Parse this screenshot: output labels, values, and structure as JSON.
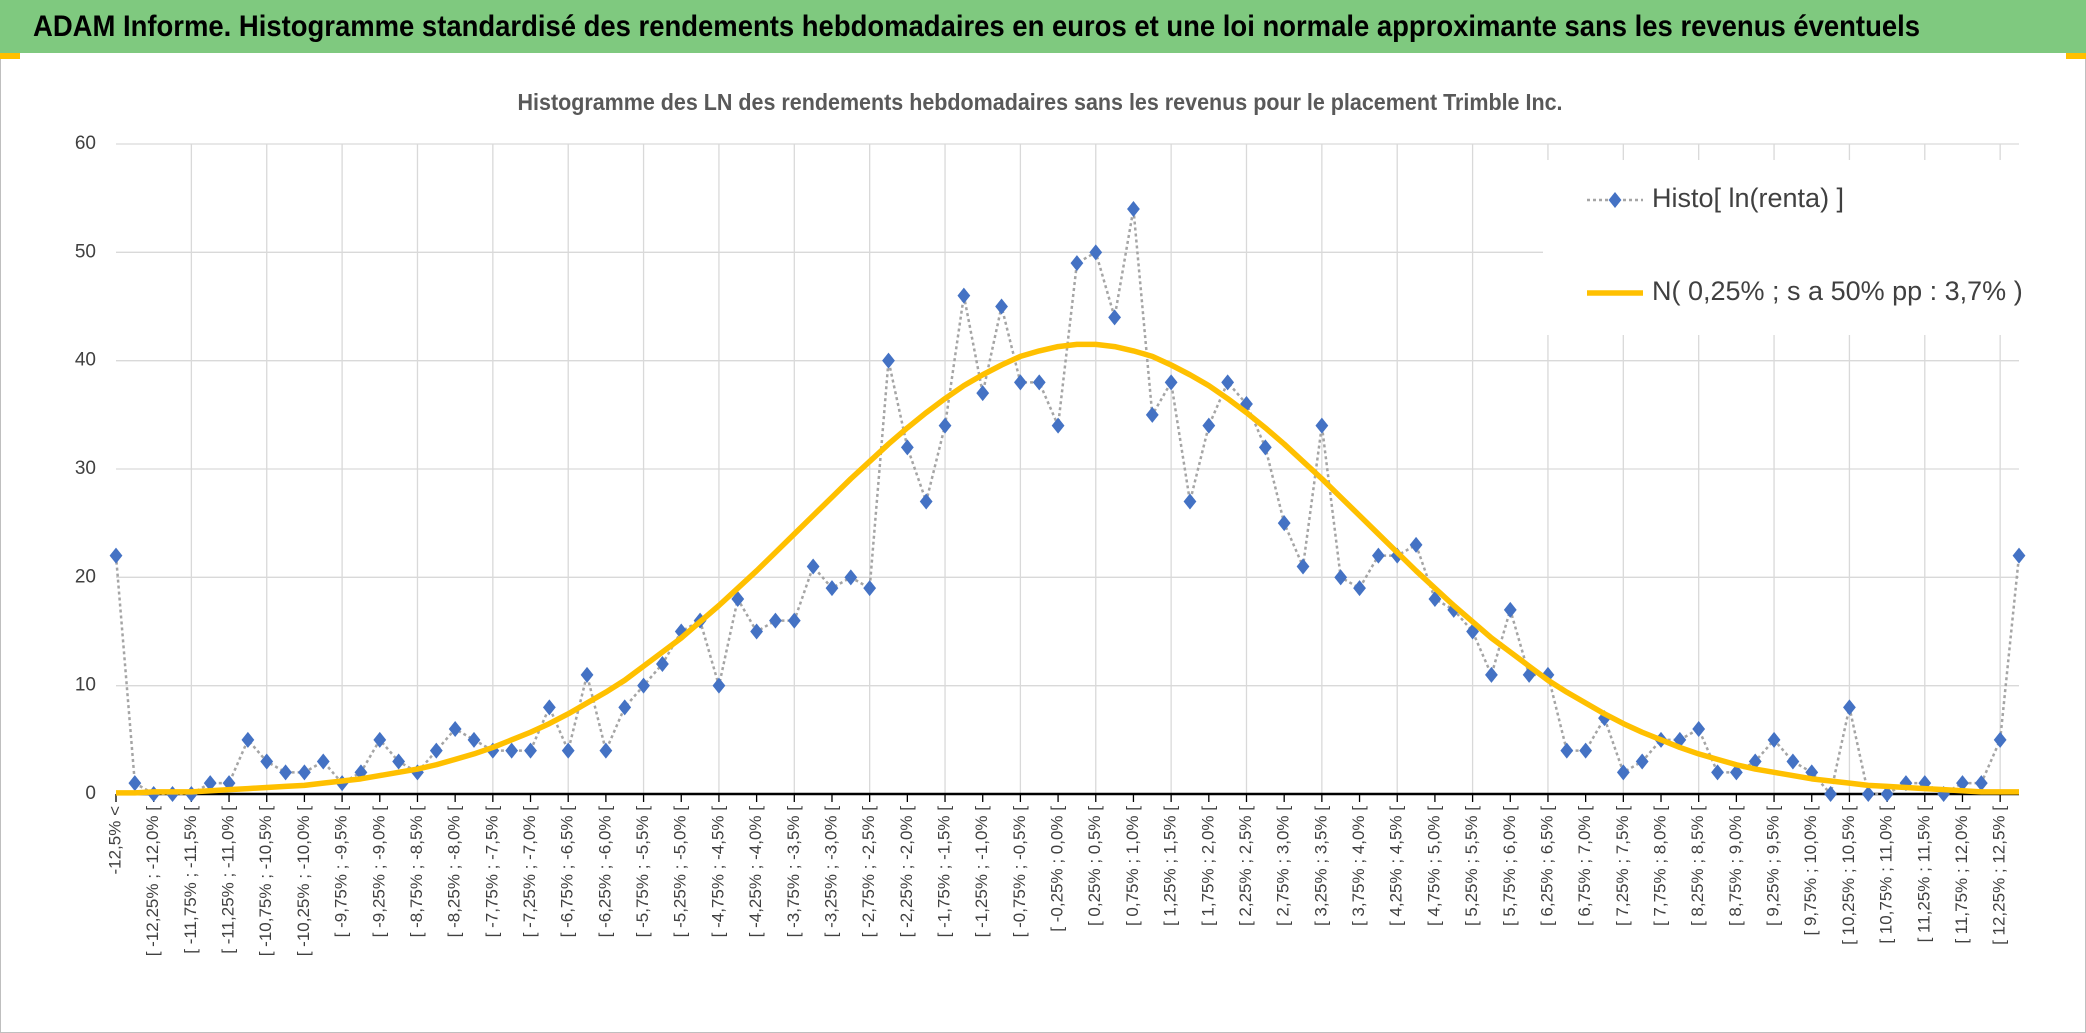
{
  "header": {
    "title": "ADAM Informe. Histogramme standardisé des rendements hebdomadaires en euros et une loi normale approximante sans les revenus éventuels"
  },
  "chart_data": {
    "type": "line",
    "title": "Histogramme des LN des rendements hebdomadaires sans les revenus pour le placement Trimble Inc.",
    "categories": [
      "-12,5% <",
      null,
      "[ -12,25% ; -12,0% [",
      null,
      "[ -11,75% ; -11,5% [",
      null,
      "[ -11,25% ; -11,0% [",
      null,
      "[ -10,75% ; -10,5% [",
      null,
      "[ -10,25% ; -10,0% [",
      null,
      "[ -9,75% ; -9,5% [",
      null,
      "[ -9,25% ; -9,0% [",
      null,
      "[ -8,75% ; -8,5% [",
      null,
      "[ -8,25% ; -8,0% [",
      null,
      "[ -7,75% ; -7,5% [",
      null,
      "[ -7,25% ; -7,0% [",
      null,
      "[ -6,75% ; -6,5% [",
      null,
      "[ -6,25% ; -6,0% [",
      null,
      "[ -5,75% ; -5,5% [",
      null,
      "[ -5,25% ; -5,0% [",
      null,
      "[ -4,75% ; -4,5% [",
      null,
      "[ -4,25% ; -4,0% [",
      null,
      "[ -3,75% ; -3,5% [",
      null,
      "[ -3,25% ; -3,0% [",
      null,
      "[ -2,75% ; -2,5% [",
      null,
      "[ -2,25% ; -2,0% [",
      null,
      "[ -1,75% ; -1,5% [",
      null,
      "[ -1,25% ; -1,0% [",
      null,
      "[ -0,75% ; -0,5% [",
      null,
      "[ -0,25% ; 0,0% [",
      null,
      "[ 0,25% ; 0,5% [",
      null,
      "[ 0,75% ; 1,0% [",
      null,
      "[ 1,25% ; 1,5% [",
      null,
      "[ 1,75% ; 2,0% [",
      null,
      "[ 2,25% ; 2,5% [",
      null,
      "[ 2,75% ; 3,0% [",
      null,
      "[ 3,25% ; 3,5% [",
      null,
      "[ 3,75% ; 4,0% [",
      null,
      "[ 4,25% ; 4,5% [",
      null,
      "[ 4,75% ; 5,0% [",
      null,
      "[ 5,25% ; 5,5% [",
      null,
      "[ 5,75% ; 6,0% [",
      null,
      "[ 6,25% ; 6,5% [",
      null,
      "[ 6,75% ; 7,0% [",
      null,
      "[ 7,25% ; 7,5% [",
      null,
      "[ 7,75% ; 8,0% [",
      null,
      "[ 8,25% ; 8,5% [",
      null,
      "[ 8,75% ; 9,0% [",
      null,
      "[ 9,25% ; 9,5% [",
      null,
      "[ 9,75% ; 10,0% [",
      null,
      "[ 10,25% ; 10,5% [",
      null,
      "[ 10,75% ; 11,0% [",
      null,
      "[ 11,25% ; 11,5% [",
      null,
      "[ 11,75% ; 12,0% [",
      null,
      "[ 12,25% ; 12,5% [",
      null
    ],
    "series": [
      {
        "name": "Histo[ ln(renta) ]",
        "color": "#4472c4",
        "line_color": "#a5a5a5",
        "line_style": "dotted",
        "marker": "diamond",
        "values": [
          22,
          1,
          0,
          0,
          0,
          1,
          1,
          5,
          3,
          2,
          2,
          3,
          1,
          2,
          5,
          3,
          2,
          4,
          6,
          5,
          4,
          4,
          4,
          8,
          4,
          11,
          4,
          8,
          10,
          12,
          15,
          16,
          10,
          18,
          15,
          16,
          16,
          21,
          19,
          20,
          19,
          40,
          32,
          27,
          34,
          46,
          37,
          45,
          38,
          38,
          34,
          49,
          50,
          44,
          54,
          35,
          38,
          27,
          34,
          38,
          36,
          32,
          25,
          21,
          34,
          20,
          19,
          22,
          22,
          23,
          18,
          17,
          15,
          11,
          17,
          11,
          11,
          4,
          4,
          7,
          2,
          3,
          5,
          5,
          6,
          2,
          2,
          3,
          5,
          3,
          2,
          0,
          8,
          0,
          0,
          1,
          1,
          0,
          1,
          1,
          5,
          22
        ]
      },
      {
        "name": "N( 0,25% ; s a 50% pp : 3,7% )",
        "color": "#ffc000",
        "line_style": "solid",
        "marker": "none",
        "values": [
          0.1,
          0.1,
          0.2,
          0.2,
          0.2,
          0.3,
          0.4,
          0.5,
          0.6,
          0.7,
          0.8,
          1.0,
          1.2,
          1.4,
          1.7,
          2.0,
          2.3,
          2.7,
          3.2,
          3.7,
          4.3,
          5.0,
          5.7,
          6.5,
          7.4,
          8.4,
          9.4,
          10.5,
          11.8,
          13.1,
          14.4,
          15.9,
          17.4,
          19.0,
          20.6,
          22.3,
          24.0,
          25.7,
          27.4,
          29.1,
          30.7,
          32.3,
          33.8,
          35.2,
          36.5,
          37.7,
          38.7,
          39.6,
          40.4,
          40.9,
          41.3,
          41.5,
          41.5,
          41.3,
          40.9,
          40.4,
          39.6,
          38.7,
          37.7,
          36.5,
          35.2,
          33.8,
          32.3,
          30.7,
          29.1,
          27.4,
          25.7,
          24.0,
          22.3,
          20.6,
          19.0,
          17.4,
          15.9,
          14.4,
          13.1,
          11.8,
          10.5,
          9.4,
          8.4,
          7.4,
          6.5,
          5.7,
          5.0,
          4.3,
          3.7,
          3.2,
          2.7,
          2.3,
          2.0,
          1.7,
          1.4,
          1.2,
          1.0,
          0.8,
          0.7,
          0.6,
          0.5,
          0.4,
          0.3,
          0.2,
          0.2,
          0.2
        ]
      }
    ],
    "ylim": [
      0,
      60
    ],
    "yticks": [
      0,
      10,
      20,
      30,
      40,
      50,
      60
    ],
    "grid": true,
    "legend": "top-right"
  }
}
